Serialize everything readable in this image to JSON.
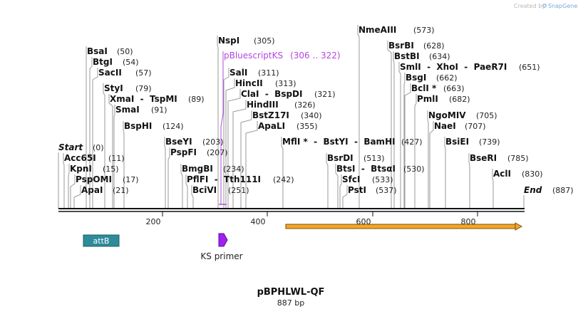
{
  "branding": {
    "created_by": "Created by",
    "app_name": "SnapGene"
  },
  "plasmid": {
    "name": "pBPHLWL-QF",
    "length_label": "887 bp",
    "length": 887
  },
  "scale": {
    "ticks": [
      "200",
      "400",
      "600",
      "800"
    ]
  },
  "enzymes": [
    {
      "label": "Start",
      "pos_label": "(0)",
      "pos": 0
    },
    {
      "label": "Acc65I",
      "pos_label": "(11)",
      "pos": 11
    },
    {
      "label": "KpnI",
      "pos_label": "(15)",
      "pos": 15
    },
    {
      "label": "PspOMI",
      "pos_label": "(17)",
      "pos": 17
    },
    {
      "label": "ApaI",
      "pos_label": "(21)",
      "pos": 21
    },
    {
      "label": "BsaI",
      "pos_label": "(50)",
      "pos": 50
    },
    {
      "label": "BtgI",
      "pos_label": "(54)",
      "pos": 54
    },
    {
      "label": "SacII",
      "pos_label": "(57)",
      "pos": 57
    },
    {
      "label": "StyI",
      "pos_label": "(79)",
      "pos": 79
    },
    {
      "label": "XmaI  -  TspMI",
      "pos_label": "(89)",
      "pos": 89
    },
    {
      "label": "SmaI",
      "pos_label": "(91)",
      "pos": 91
    },
    {
      "label": "BspHI",
      "pos_label": "(124)",
      "pos": 124
    },
    {
      "label": "BseYI",
      "pos_label": "(203)",
      "pos": 203
    },
    {
      "label": "PspFI",
      "pos_label": "(207)",
      "pos": 207
    },
    {
      "label": "BmgBI",
      "pos_label": "(234)",
      "pos": 234
    },
    {
      "label": "PflFI  -  Tth111I",
      "pos_label": "(242)",
      "pos": 242
    },
    {
      "label": "BciVI",
      "pos_label": "(251)",
      "pos": 251
    },
    {
      "label": "NspI",
      "pos_label": "(305)",
      "pos": 305
    },
    {
      "label": "SalI",
      "pos_label": "(311)",
      "pos": 311
    },
    {
      "label": "HincII",
      "pos_label": "(313)",
      "pos": 313
    },
    {
      "label": "ClaI  -  BspDI",
      "pos_label": "(321)",
      "pos": 321
    },
    {
      "label": "HindIII",
      "pos_label": "(326)",
      "pos": 326
    },
    {
      "label": "BstZ17I",
      "pos_label": "(340)",
      "pos": 340
    },
    {
      "label": "ApaLI",
      "pos_label": "(355)",
      "pos": 355
    },
    {
      "label": "MflI *  -  BstYI  -  BamHI",
      "pos_label": "(427)",
      "pos": 427
    },
    {
      "label": "BsrDI",
      "pos_label": "(513)",
      "pos": 513
    },
    {
      "label": "BtsI  -  BtsαI",
      "pos_label": "(530)",
      "pos": 530
    },
    {
      "label": "SfcI",
      "pos_label": "(533)",
      "pos": 533
    },
    {
      "label": "PstI",
      "pos_label": "(537)",
      "pos": 537
    },
    {
      "label": "NmeAIII",
      "pos_label": "(573)",
      "pos": 573
    },
    {
      "label": "BsrBI",
      "pos_label": "(628)",
      "pos": 628
    },
    {
      "label": "BstBI",
      "pos_label": "(634)",
      "pos": 634
    },
    {
      "label": "SmlI  -  XhoI  -  PaeR7I",
      "pos_label": "(651)",
      "pos": 651
    },
    {
      "label": "BsgI",
      "pos_label": "(662)",
      "pos": 662
    },
    {
      "label": "BclI *",
      "pos_label": "(663)",
      "pos": 663
    },
    {
      "label": "PmlI",
      "pos_label": "(682)",
      "pos": 682
    },
    {
      "label": "NgoMIV",
      "pos_label": "(705)",
      "pos": 705
    },
    {
      "label": "NaeI",
      "pos_label": "(707)",
      "pos": 707
    },
    {
      "label": "BsiEI",
      "pos_label": "(739)",
      "pos": 739
    },
    {
      "label": "BseRI",
      "pos_label": "(785)",
      "pos": 785
    },
    {
      "label": "AclI",
      "pos_label": "(830)",
      "pos": 830
    },
    {
      "label": "End",
      "pos_label": "(887)",
      "pos": 887
    }
  ],
  "features": [
    {
      "label": "pBluescriptKS",
      "range_label": "(306 .. 322)",
      "start": 306,
      "end": 322,
      "color": "#b347e0"
    }
  ],
  "tracks": [
    {
      "label": "attB",
      "color": "#2e8b9a"
    },
    {
      "label": "KS primer",
      "color": "#a020f0"
    },
    {
      "label": "",
      "color": "#f5a623"
    }
  ]
}
